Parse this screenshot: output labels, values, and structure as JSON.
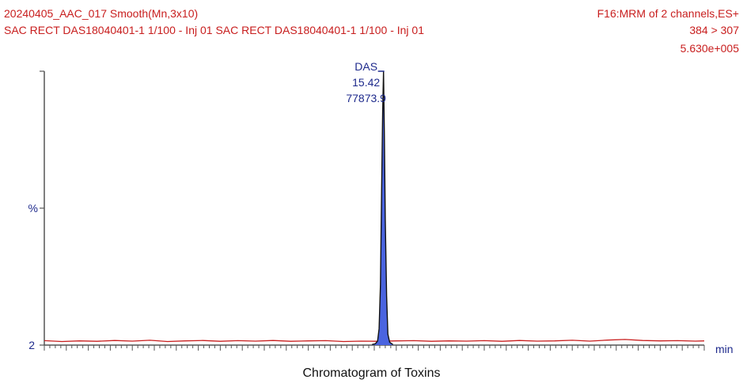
{
  "header": {
    "line1_left": "20240405_AAC_017 Smooth(Mn,3x10)",
    "line1_right": "F16:MRM of 2 channels,ES+",
    "line2_left": "SAC RECT DAS18040401-1 1/100 - Inj 01 SAC RECT DAS18040401-1 1/100 - Inj 01",
    "line2_right": "384 > 307",
    "line3_right": "5.630e+005"
  },
  "caption": "Chromatogram of Toxins",
  "colors": {
    "header_text": "#c81e1e",
    "peak_fill": "#4a64e0",
    "trace": "#c81e1e",
    "label_text": "#1e2a8c",
    "axis": "#555555"
  },
  "chart_data": {
    "type": "area",
    "xlabel": "min",
    "ylabel": "%",
    "y_tick_labels": [
      "2",
      "%"
    ],
    "xlim": [
      0,
      30
    ],
    "ylim": [
      0,
      100
    ],
    "grid": false,
    "peak": {
      "name": "DAS",
      "retention_time": "15.42",
      "area": "77873.9",
      "x": 15.42,
      "y": 100
    },
    "series": [
      {
        "x": [
          14.9,
          15.05,
          15.15,
          15.22,
          15.28,
          15.33,
          15.38,
          15.42,
          15.46,
          15.5,
          15.56,
          15.62,
          15.7,
          15.85
        ],
        "values": [
          0.2,
          0.5,
          1.5,
          6,
          22,
          55,
          85,
          100,
          76,
          46,
          18,
          4,
          1,
          0.2
        ]
      }
    ],
    "baseline": {
      "x": [
        0,
        0.8,
        1.6,
        2.4,
        3.2,
        4.0,
        4.8,
        5.6,
        6.4,
        7.2,
        8.0,
        8.8,
        9.6,
        10.4,
        11.2,
        12.0,
        12.8,
        13.6,
        14.4,
        15.2,
        16.0,
        16.8,
        17.6,
        18.4,
        19.2,
        20.0,
        20.8,
        21.6,
        22.4,
        23.2,
        24.0,
        24.8,
        25.6,
        26.4,
        27.2,
        28.0,
        28.8,
        29.6,
        30.0
      ],
      "values": [
        0.6,
        0.2,
        0.5,
        0.3,
        0.7,
        0.4,
        0.8,
        0.2,
        0.5,
        0.7,
        0.3,
        0.6,
        0.4,
        0.7,
        0.3,
        0.5,
        0.6,
        0.2,
        0.4,
        0.3,
        0.5,
        0.6,
        0.3,
        0.5,
        0.4,
        0.6,
        0.3,
        0.7,
        0.4,
        0.5,
        0.8,
        0.4,
        0.9,
        1.2,
        0.7,
        0.5,
        0.6,
        0.4,
        0.5
      ]
    }
  }
}
